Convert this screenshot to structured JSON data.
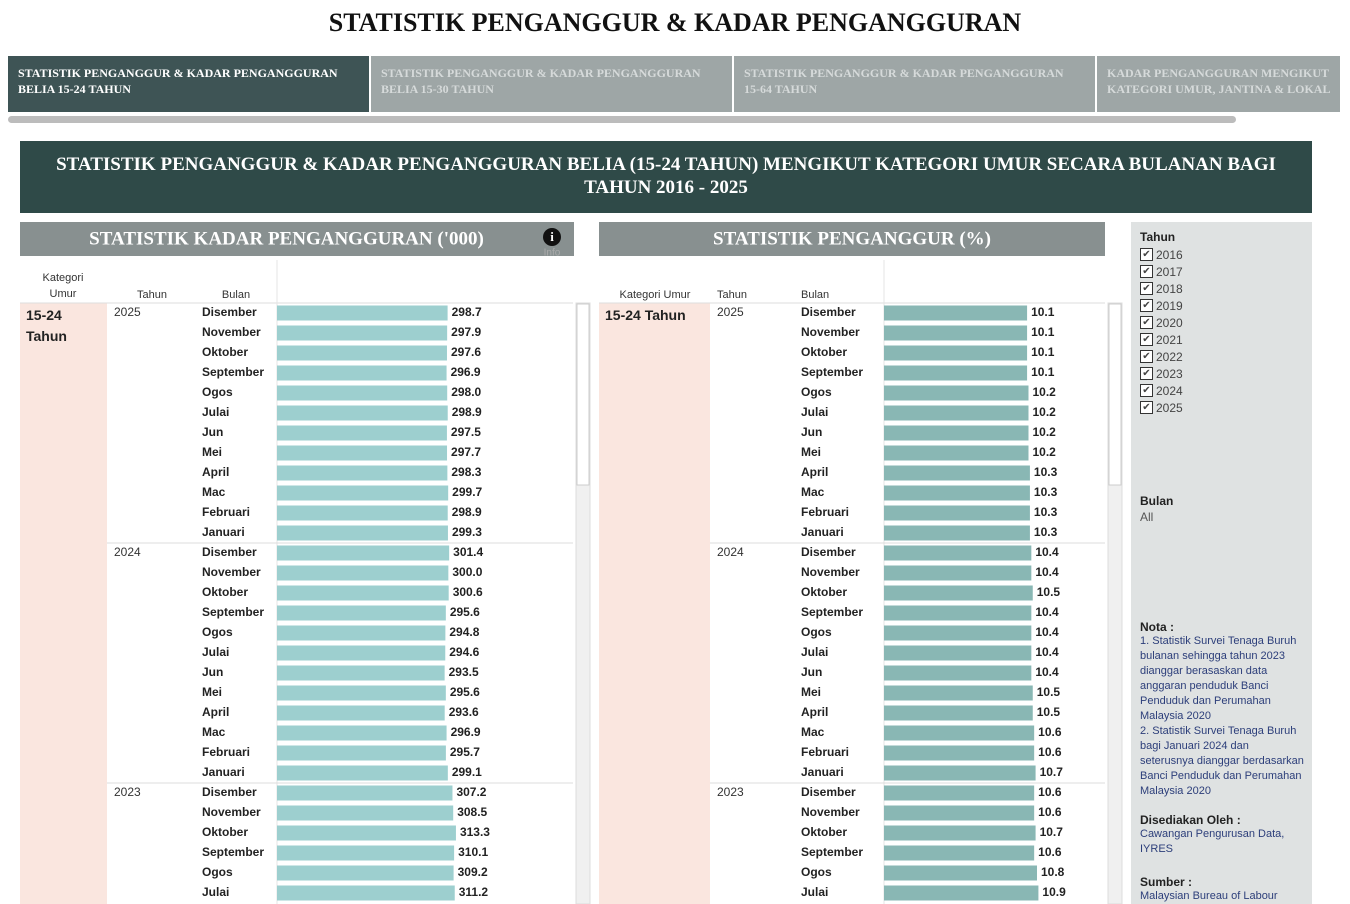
{
  "header": {
    "title": "STATISTIK PENGANGGUR & KADAR PENGANGGURAN"
  },
  "tabs": [
    {
      "lines": [
        "STATISTIK PENGANGGUR & KADAR PENGANGGURAN",
        "BELIA 15-24 TAHUN"
      ]
    },
    {
      "lines": [
        "STATISTIK PENGANGGUR & KADAR PENGANGGURAN",
        "BELIA 15-30 TAHUN"
      ]
    },
    {
      "lines": [
        "STATISTIK PENGANGGUR & KADAR PENGANGGURAN",
        "15-64 TAHUN"
      ]
    },
    {
      "lines": [
        "KADAR PENGANGGURAN MENGIKUT",
        "KATEGORI UMUR, JANTINA & LOKALI.."
      ]
    }
  ],
  "banner": {
    "title": "STATISTIK PENGANGGUR & KADAR PENGANGGURAN BELIA (15-24 TAHUN) MENGIKUT KATEGORI UMUR SECARA BULANAN BAGI TAHUN 2016 - 2025"
  },
  "chart_data": [
    {
      "type": "bar",
      "title": "STATISTIK KADAR PENGANGGURAN ('000)",
      "info": "Info",
      "columns": [
        "Kategori Umur",
        "Tahun",
        "Bulan"
      ],
      "category": "15-24 Tahun",
      "color": "#9dcfcf",
      "xlim": [
        0,
        520
      ],
      "years": [
        {
          "year": "2025",
          "months": [
            "Disember",
            "November",
            "Oktober",
            "September",
            "Ogos",
            "Julai",
            "Jun",
            "Mei",
            "April",
            "Mac",
            "Februari",
            "Januari"
          ],
          "values": [
            298.7,
            297.9,
            297.6,
            296.9,
            298.0,
            298.9,
            297.5,
            297.7,
            298.3,
            299.7,
            298.9,
            299.3
          ],
          "value_labels": [
            "298.7",
            "297.9",
            "297.6",
            "296.9",
            "298.0",
            "298.9",
            "297.5",
            "297.7",
            "298.3",
            "299.7",
            "298.9",
            "299.3"
          ]
        },
        {
          "year": "2024",
          "months": [
            "Disember",
            "November",
            "Oktober",
            "September",
            "Ogos",
            "Julai",
            "Jun",
            "Mei",
            "April",
            "Mac",
            "Februari",
            "Januari"
          ],
          "values": [
            301.4,
            300.0,
            300.6,
            295.6,
            294.8,
            294.6,
            293.5,
            295.6,
            293.6,
            296.9,
            295.7,
            299.1
          ],
          "value_labels": [
            "301.4",
            "300.0",
            "300.6",
            "295.6",
            "294.8",
            "294.6",
            "293.5",
            "295.6",
            "293.6",
            "296.9",
            "295.7",
            "299.1"
          ]
        },
        {
          "year": "2023",
          "months": [
            "Disember",
            "November",
            "Oktober",
            "September",
            "Ogos",
            "Julai"
          ],
          "values": [
            307.2,
            308.5,
            313.3,
            310.1,
            309.2,
            311.2
          ],
          "value_labels": [
            "307.2",
            "308.5",
            "313.3",
            "310.1",
            "309.2",
            "311.2"
          ]
        }
      ]
    },
    {
      "type": "bar",
      "title": "STATISTIK PENGANGGUR (%)",
      "columns": [
        "Kategori Umur",
        "Tahun",
        "Bulan"
      ],
      "category": "15-24 Tahun",
      "color": "#89b7b4",
      "xlim": [
        0,
        15.6
      ],
      "years": [
        {
          "year": "2025",
          "months": [
            "Disember",
            "November",
            "Oktober",
            "September",
            "Ogos",
            "Julai",
            "Jun",
            "Mei",
            "April",
            "Mac",
            "Februari",
            "Januari"
          ],
          "values": [
            10.1,
            10.1,
            10.1,
            10.1,
            10.2,
            10.2,
            10.2,
            10.2,
            10.3,
            10.3,
            10.3,
            10.3
          ]
        },
        {
          "year": "2024",
          "months": [
            "Disember",
            "November",
            "Oktober",
            "September",
            "Ogos",
            "Julai",
            "Jun",
            "Mei",
            "April",
            "Mac",
            "Februari",
            "Januari"
          ],
          "values": [
            10.4,
            10.4,
            10.5,
            10.4,
            10.4,
            10.4,
            10.4,
            10.5,
            10.5,
            10.6,
            10.6,
            10.7
          ]
        },
        {
          "year": "2023",
          "months": [
            "Disember",
            "November",
            "Oktober",
            "September",
            "Ogos",
            "Julai"
          ],
          "values": [
            10.6,
            10.6,
            10.7,
            10.6,
            10.8,
            10.9
          ]
        }
      ]
    }
  ],
  "filters": {
    "year_title": "Tahun",
    "years": [
      "2016",
      "2017",
      "2018",
      "2019",
      "2020",
      "2021",
      "2022",
      "2023",
      "2024",
      "2025"
    ],
    "month_title": "Bulan",
    "month_value": "All"
  },
  "notes": {
    "title": "Nota :",
    "items": [
      "1. Statistik Survei Tenaga Buruh bulanan sehingga tahun 2023 dianggar berasaskan data anggaran penduduk Banci Penduduk dan Perumahan Malaysia 2020",
      "2. Statistik Survei Tenaga Buruh bagi Januari 2024 dan seterusnya dianggar berdasarkan Banci Penduduk dan Perumahan Malaysia 2020"
    ],
    "prepared_title": "Disediakan Oleh :",
    "prepared": "Cawangan Pengurusan Data, IYRES",
    "source_title": "Sumber :",
    "source": "Malaysian Bureau of Labour"
  }
}
